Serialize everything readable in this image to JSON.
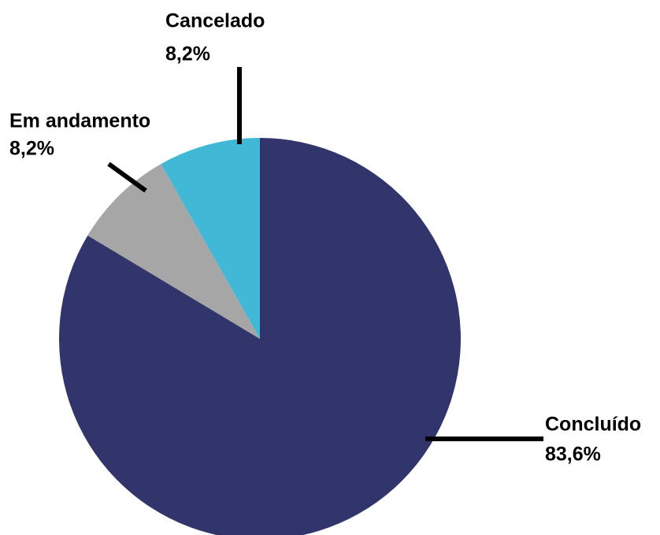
{
  "chart_data": {
    "type": "pie",
    "categories": [
      "Concluído",
      "Em andamento",
      "Cancelado"
    ],
    "values": [
      83.6,
      8.2,
      8.2
    ],
    "value_labels": [
      "83,6%",
      "8,2%",
      "8,2%"
    ],
    "colors": [
      "#31356b",
      "#a6a6a6",
      "#41b8d6"
    ]
  }
}
